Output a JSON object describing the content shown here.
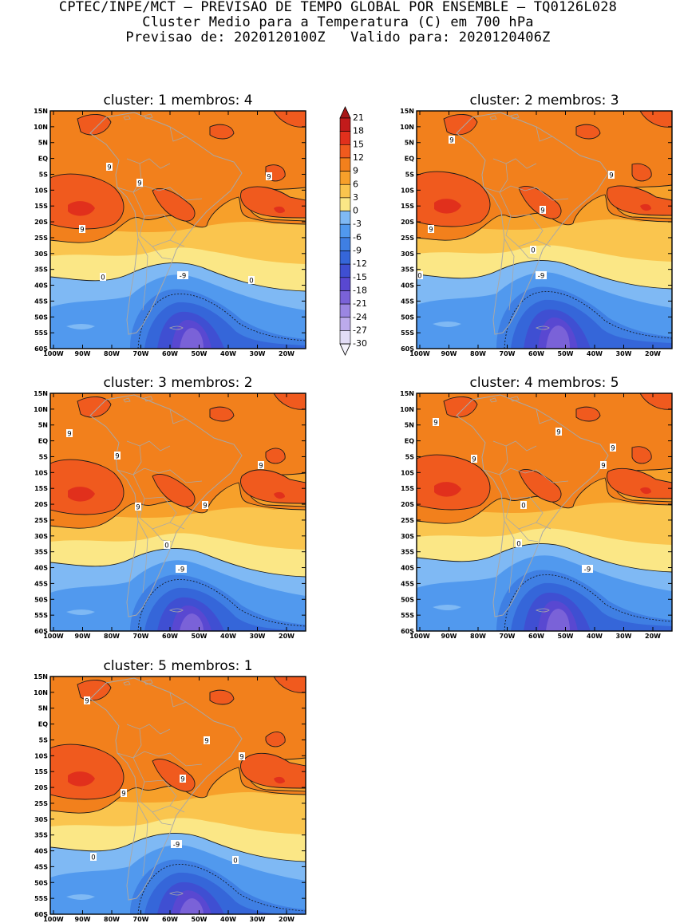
{
  "header": {
    "line1": "CPTEC/INPE/MCT – PREVISAO DE TEMPO GLOBAL POR ENSEMBLE – TQ0126L028",
    "line2": "Cluster Medio para a Temperatura (C) em 700 hPa",
    "line3": "Previsao de: 2020120100Z   Valido para: 2020120406Z"
  },
  "colors": {
    "c18": "#c21b1b",
    "c15": "#e1301c",
    "c12": "#f05a1e",
    "c9": "#f2801c",
    "c6": "#f7a02a",
    "c3": "#fac54e",
    "c0": "#fbe786",
    "cm3": "#7fb9f4",
    "cm6": "#5199ee",
    "cm9": "#3f7fe3",
    "cm12": "#3566d9",
    "cm15": "#3f4fd2",
    "cm18": "#5948d1",
    "cm21": "#7a62d8",
    "cm24": "#9b86e2",
    "cm27": "#bcaaeb",
    "cm30": "#e2dcf6"
  },
  "colorbar": {
    "labels": [
      "21",
      "18",
      "15",
      "12",
      "9",
      "6",
      "3",
      "0",
      "-3",
      "-6",
      "-9",
      "-12",
      "-15",
      "-18",
      "-21",
      "-24",
      "-27",
      "-30"
    ]
  },
  "axes": {
    "lat_labels": [
      "15N",
      "10N",
      "5N",
      "EQ",
      "5S",
      "10S",
      "15S",
      "20S",
      "25S",
      "30S",
      "35S",
      "40S",
      "45S",
      "50S",
      "55S",
      "60S"
    ],
    "lon_labels": [
      "100W",
      "90W",
      "80W",
      "70W",
      "60W",
      "50W",
      "40W",
      "30W",
      "20W"
    ]
  },
  "clusters": [
    {
      "title": "cluster: 1   membros: 4",
      "labels": [
        "9",
        "9",
        "9",
        "9",
        "0",
        "0",
        "-9"
      ]
    },
    {
      "title": "cluster: 2   membros: 3",
      "labels": [
        "9",
        "9",
        "9",
        "9",
        "0",
        "0",
        "-9"
      ]
    },
    {
      "title": "cluster: 3   membros: 2",
      "labels": [
        "9",
        "9",
        "9",
        "9",
        "9",
        "0",
        "-9"
      ]
    },
    {
      "title": "cluster: 4   membros: 5",
      "labels": [
        "9",
        "9",
        "9",
        "9",
        "9",
        "0",
        "0",
        "-9"
      ]
    },
    {
      "title": "cluster: 5   membros: 1",
      "labels": [
        "9",
        "9",
        "9",
        "9",
        "9",
        "0",
        "0",
        "-9"
      ]
    }
  ]
}
